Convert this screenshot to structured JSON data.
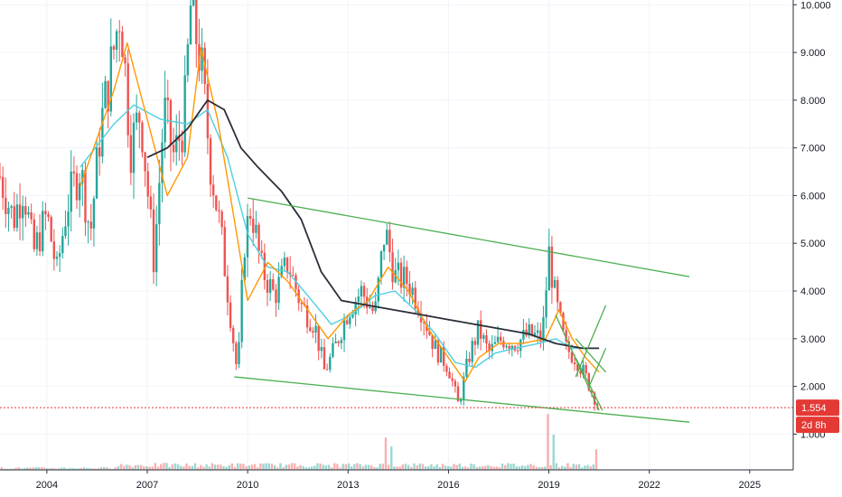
{
  "chart_data": {
    "type": "candlestick",
    "title": "",
    "xlabel": "",
    "ylabel": "",
    "x_range": [
      2002.6,
      2026.3
    ],
    "y_range": [
      0.25,
      10.1
    ],
    "x_ticks": [
      "2004",
      "2007",
      "2010",
      "2013",
      "2016",
      "2019",
      "2022",
      "2025"
    ],
    "y_ticks": [
      "10.000",
      "9.000",
      "8.000",
      "7.000",
      "6.000",
      "5.000",
      "4.000",
      "3.000",
      "2.000",
      "1.000"
    ],
    "grid": true,
    "last_price": {
      "value": 1.554,
      "label": "1.554",
      "countdown": "2d 8h"
    },
    "colors": {
      "up": "#26a69a",
      "down": "#ef5350",
      "ma_fast": "#ff9800",
      "ma_mid": "#4dd0e1",
      "ma_slow": "#2a2e39",
      "trendline": "#4caf50",
      "price_line": "#e53935",
      "grid": "#f0f3fa"
    },
    "price_path": [
      [
        2002.6,
        6.4
      ],
      [
        2003.0,
        5.5
      ],
      [
        2003.3,
        6.2
      ],
      [
        2003.6,
        4.8
      ],
      [
        2004.0,
        5.6
      ],
      [
        2004.3,
        4.4
      ],
      [
        2004.6,
        5.8
      ],
      [
        2005.0,
        6.6
      ],
      [
        2005.3,
        5.2
      ],
      [
        2005.6,
        7.4
      ],
      [
        2005.9,
        8.6
      ],
      [
        2006.2,
        10.0
      ],
      [
        2006.5,
        7.0
      ],
      [
        2006.8,
        7.8
      ],
      [
        2007.0,
        6.2
      ],
      [
        2007.2,
        4.6
      ],
      [
        2007.5,
        7.8
      ],
      [
        2007.8,
        6.8
      ],
      [
        2008.1,
        7.6
      ],
      [
        2008.3,
        10.0
      ],
      [
        2008.6,
        8.8
      ],
      [
        2008.9,
        6.6
      ],
      [
        2009.2,
        5.2
      ],
      [
        2009.5,
        3.4
      ],
      [
        2009.7,
        2.2
      ],
      [
        2009.9,
        5.0
      ],
      [
        2010.1,
        5.8
      ],
      [
        2010.4,
        4.5
      ],
      [
        2010.8,
        3.9
      ],
      [
        2011.2,
        4.6
      ],
      [
        2011.6,
        3.7
      ],
      [
        2012.0,
        3.3
      ],
      [
        2012.3,
        2.3
      ],
      [
        2012.6,
        2.8
      ],
      [
        2013.0,
        3.6
      ],
      [
        2013.4,
        4.0
      ],
      [
        2013.8,
        3.5
      ],
      [
        2014.1,
        5.3
      ],
      [
        2014.4,
        4.3
      ],
      [
        2014.8,
        4.2
      ],
      [
        2015.2,
        3.6
      ],
      [
        2015.6,
        2.8
      ],
      [
        2016.0,
        2.4
      ],
      [
        2016.3,
        1.6
      ],
      [
        2016.6,
        2.6
      ],
      [
        2016.9,
        3.2
      ],
      [
        2017.2,
        2.7
      ],
      [
        2017.6,
        3.0
      ],
      [
        2018.0,
        2.9
      ],
      [
        2018.4,
        3.1
      ],
      [
        2018.8,
        3.0
      ],
      [
        2019.0,
        4.8
      ],
      [
        2019.2,
        3.8
      ],
      [
        2019.5,
        2.8
      ],
      [
        2019.8,
        2.6
      ],
      [
        2020.1,
        2.2
      ],
      [
        2020.4,
        1.7
      ],
      [
        2020.5,
        1.55
      ]
    ],
    "ma_fast": [
      [
        2005.0,
        6.2
      ],
      [
        2006.0,
        8.2
      ],
      [
        2006.4,
        9.2
      ],
      [
        2007.0,
        7.6
      ],
      [
        2007.6,
        6.0
      ],
      [
        2008.2,
        6.8
      ],
      [
        2008.6,
        9.1
      ],
      [
        2009.1,
        7.6
      ],
      [
        2009.6,
        5.5
      ],
      [
        2010.0,
        3.8
      ],
      [
        2010.6,
        4.6
      ],
      [
        2011.2,
        4.2
      ],
      [
        2011.8,
        3.6
      ],
      [
        2012.4,
        3.0
      ],
      [
        2013.0,
        3.5
      ],
      [
        2013.6,
        3.8
      ],
      [
        2014.2,
        4.5
      ],
      [
        2014.8,
        4.0
      ],
      [
        2015.4,
        3.2
      ],
      [
        2016.0,
        2.6
      ],
      [
        2016.5,
        2.1
      ],
      [
        2016.9,
        2.6
      ],
      [
        2017.5,
        2.9
      ],
      [
        2018.2,
        2.9
      ],
      [
        2018.9,
        3.0
      ],
      [
        2019.3,
        3.6
      ],
      [
        2019.7,
        3.0
      ],
      [
        2020.1,
        2.6
      ],
      [
        2020.5,
        2.3
      ]
    ],
    "ma_mid": [
      [
        2005.0,
        6.6
      ],
      [
        2006.0,
        7.5
      ],
      [
        2006.6,
        7.9
      ],
      [
        2007.4,
        7.6
      ],
      [
        2008.2,
        7.5
      ],
      [
        2008.8,
        7.8
      ],
      [
        2009.4,
        6.8
      ],
      [
        2010.0,
        5.2
      ],
      [
        2010.6,
        4.5
      ],
      [
        2011.2,
        4.4
      ],
      [
        2011.8,
        3.9
      ],
      [
        2012.5,
        3.3
      ],
      [
        2013.1,
        3.5
      ],
      [
        2013.8,
        3.9
      ],
      [
        2014.4,
        4.0
      ],
      [
        2015.0,
        3.6
      ],
      [
        2015.6,
        3.1
      ],
      [
        2016.2,
        2.5
      ],
      [
        2016.8,
        2.4
      ],
      [
        2017.4,
        2.7
      ],
      [
        2018.0,
        2.8
      ],
      [
        2018.7,
        2.9
      ],
      [
        2019.2,
        3.0
      ],
      [
        2019.7,
        2.8
      ],
      [
        2020.2,
        2.8
      ],
      [
        2020.5,
        2.8
      ]
    ],
    "ma_slow": [
      [
        2007.0,
        6.8
      ],
      [
        2007.6,
        7.0
      ],
      [
        2008.2,
        7.4
      ],
      [
        2008.8,
        8.0
      ],
      [
        2009.3,
        7.8
      ],
      [
        2009.8,
        7.0
      ],
      [
        2010.3,
        6.6
      ],
      [
        2011.0,
        6.1
      ],
      [
        2011.6,
        5.5
      ],
      [
        2012.2,
        4.4
      ],
      [
        2012.8,
        3.8
      ],
      [
        2013.6,
        3.7
      ],
      [
        2014.4,
        3.6
      ],
      [
        2015.2,
        3.5
      ],
      [
        2016.0,
        3.4
      ],
      [
        2016.8,
        3.3
      ],
      [
        2017.6,
        3.2
      ],
      [
        2018.4,
        3.1
      ],
      [
        2019.2,
        2.9
      ],
      [
        2020.0,
        2.8
      ],
      [
        2020.5,
        2.8
      ]
    ],
    "trendlines": [
      [
        [
          2010.0,
          5.95
        ],
        [
          2023.2,
          4.3
        ]
      ],
      [
        [
          2009.6,
          2.2
        ],
        [
          2023.2,
          1.25
        ]
      ],
      [
        [
          2019.2,
          3.5
        ],
        [
          2020.5,
          1.5
        ]
      ],
      [
        [
          2019.8,
          2.2
        ],
        [
          2020.7,
          3.7
        ]
      ],
      [
        [
          2019.8,
          3.0
        ],
        [
          2020.7,
          2.3
        ]
      ],
      [
        [
          2020.2,
          2.0
        ],
        [
          2020.7,
          2.8
        ]
      ],
      [
        [
          2019.8,
          2.6
        ],
        [
          2020.6,
          1.5
        ]
      ]
    ],
    "volume_spikes": [
      [
        2014.1,
        0.55
      ],
      [
        2014.3,
        0.4
      ],
      [
        2019.0,
        0.95
      ],
      [
        2019.15,
        0.6
      ],
      [
        2020.45,
        0.35
      ]
    ]
  }
}
